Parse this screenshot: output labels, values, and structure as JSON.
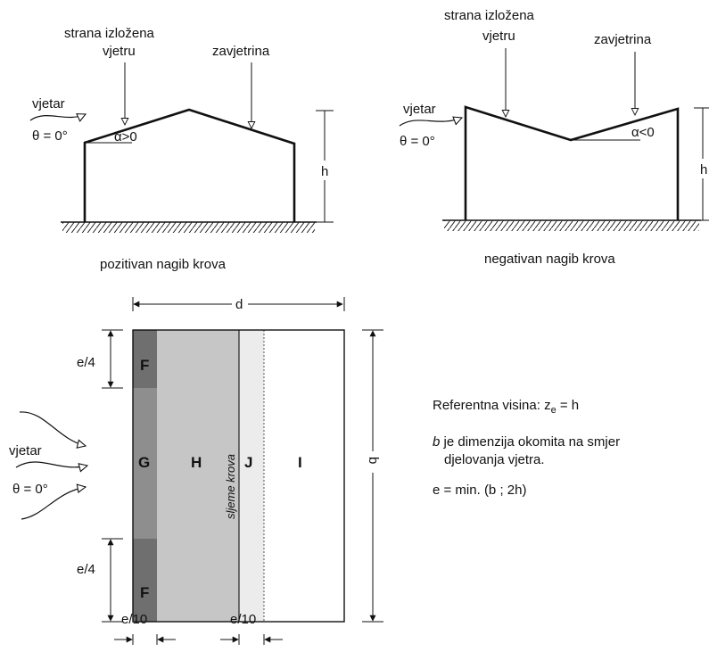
{
  "colors": {
    "zone_f": "#6f6f6f",
    "zone_g": "#8e8e8e",
    "zone_h": "#c6c6c6",
    "zone_j": "#ececec",
    "zone_i": "#ffffff",
    "line": "#111111"
  },
  "left_section": {
    "windward_line1": "strana izložena",
    "windward_line2": "vjetru",
    "leeward": "zavjetrina",
    "wind": "vjetar",
    "theta": "θ = 0°",
    "alpha": "α>0",
    "height": "h",
    "caption": "pozitivan nagib krova"
  },
  "right_section": {
    "windward_line1": "strana izložena",
    "windward_line2": "vjetru",
    "leeward": "zavjetrina",
    "wind": "vjetar",
    "theta": "θ = 0°",
    "alpha": "α<0",
    "height": "h",
    "caption": "negativan nagib krova"
  },
  "plan": {
    "dim_d": "d",
    "dim_b": "b",
    "dim_e4_top": "e/4",
    "dim_e4_bottom": "e/4",
    "dim_e10_left": "e/10",
    "dim_e10_right": "e/10",
    "zone_f_top": "F",
    "zone_f_bottom": "F",
    "zone_g": "G",
    "zone_h": "H",
    "zone_j": "J",
    "zone_i": "I",
    "ridge_label": "sljeme krova",
    "wind": "vjetar",
    "theta": "θ = 0°"
  },
  "notes": {
    "ref_prefix": "Referentna visina: z",
    "ref_sub": "e",
    "ref_suffix": " = h",
    "b_italic": "b",
    "b_text": " je dimenzija okomita na smjer",
    "b_text2": "djelovanja vjetra.",
    "e_formula": "e = min. (b ; 2h)"
  }
}
